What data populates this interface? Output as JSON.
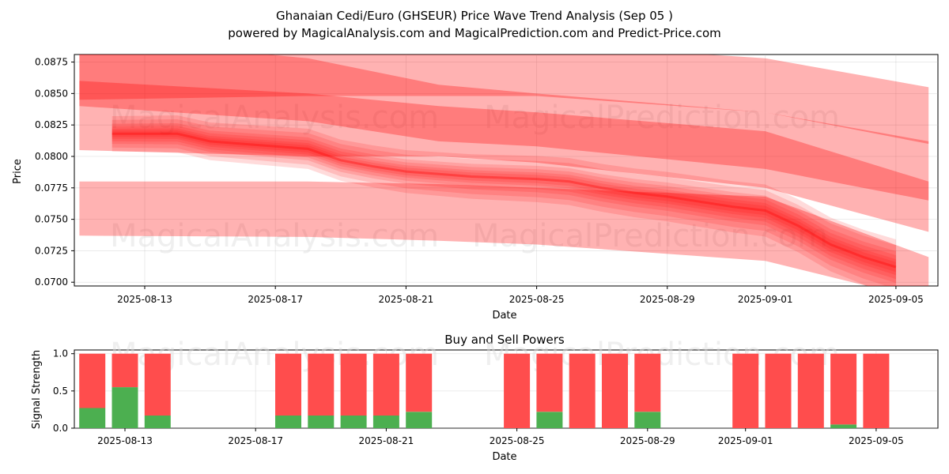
{
  "title_line1": "Ghanaian Cedi/Euro (GHSEUR) Price Wave Trend Analysis (Sep 05 )",
  "title_line2": "powered by MagicalAnalysis.com and MagicalPrediction.com and Predict-Price.com",
  "watermarks": [
    "MagicalAnalysis.com",
    "MagicalPrediction.com"
  ],
  "colors": {
    "band": "#ff0000",
    "buy": "#4caf50",
    "sell": "#ff4d4d"
  },
  "chart_data": [
    {
      "type": "area",
      "xlabel": "Date",
      "ylabel": "Price",
      "ylim": [
        0.0697,
        0.0881
      ],
      "x_ticks": [
        "2025-08-13",
        "2025-08-17",
        "2025-08-21",
        "2025-08-25",
        "2025-08-29",
        "2025-09-01",
        "2025-09-05"
      ],
      "y_ticks": [
        "0.0875",
        "0.0850",
        "0.0825",
        "0.0800",
        "0.0775",
        "0.0750",
        "0.0725",
        "0.0700"
      ],
      "grid": true,
      "bands": [
        {
          "x": [
            "2025-08-11",
            "2025-08-18",
            "2025-08-22",
            "2025-08-25",
            "2025-09-01",
            "2025-09-06"
          ],
          "upper": [
            0.0895,
            0.0878,
            0.0857,
            0.085,
            0.0835,
            0.0812
          ],
          "lower": [
            0.084,
            0.0828,
            0.0812,
            0.0808,
            0.079,
            0.0765
          ]
        },
        {
          "x": [
            "2025-08-11",
            "2025-08-18",
            "2025-08-22",
            "2025-08-25",
            "2025-09-01",
            "2025-09-06"
          ],
          "upper": [
            0.0905,
            0.0895,
            0.089,
            0.089,
            0.0878,
            0.0855
          ],
          "lower": [
            0.0845,
            0.0848,
            0.0848,
            0.0848,
            0.0835,
            0.081
          ]
        },
        {
          "x": [
            "2025-08-11",
            "2025-08-18",
            "2025-08-22",
            "2025-08-25",
            "2025-09-01",
            "2025-09-06"
          ],
          "upper": [
            0.086,
            0.085,
            0.084,
            0.0835,
            0.082,
            0.078
          ],
          "lower": [
            0.0805,
            0.08,
            0.08,
            0.0795,
            0.0775,
            0.074
          ]
        },
        {
          "x": [
            "2025-08-11",
            "2025-08-18",
            "2025-08-22",
            "2025-08-25",
            "2025-09-01",
            "2025-09-06"
          ],
          "upper": [
            0.078,
            0.078,
            0.0778,
            0.0775,
            0.0768,
            0.072
          ],
          "lower": [
            0.0737,
            0.0736,
            0.0733,
            0.073,
            0.0717,
            0.0685
          ]
        }
      ],
      "trend": {
        "x": [
          "2025-08-12",
          "2025-08-13",
          "2025-08-14",
          "2025-08-15",
          "2025-08-16",
          "2025-08-17",
          "2025-08-18",
          "2025-08-19",
          "2025-08-20",
          "2025-08-21",
          "2025-08-22",
          "2025-08-23",
          "2025-08-24",
          "2025-08-25",
          "2025-08-26",
          "2025-08-27",
          "2025-08-28",
          "2025-08-29",
          "2025-08-30",
          "2025-08-31",
          "2025-09-01",
          "2025-09-02",
          "2025-09-03",
          "2025-09-04",
          "2025-09-05"
        ],
        "y": [
          0.0818,
          0.0818,
          0.0818,
          0.0812,
          0.081,
          0.0808,
          0.0806,
          0.0797,
          0.0792,
          0.0788,
          0.0786,
          0.0784,
          0.0783,
          0.0782,
          0.078,
          0.0775,
          0.0771,
          0.0768,
          0.0764,
          0.076,
          0.0757,
          0.0745,
          0.073,
          0.072,
          0.0712
        ]
      }
    },
    {
      "type": "bar",
      "title": "Buy and Sell Powers",
      "xlabel": "Date",
      "ylabel": "Signal Strength",
      "ylim": [
        0,
        1.05
      ],
      "x_ticks": [
        "2025-08-13",
        "2025-08-17",
        "2025-08-21",
        "2025-08-25",
        "2025-08-29",
        "2025-09-01",
        "2025-09-05"
      ],
      "y_ticks": [
        "1.0",
        "0.5",
        "0.0"
      ],
      "grid": true,
      "categories": [
        "2025-08-12",
        "2025-08-13",
        "2025-08-14",
        "2025-08-18",
        "2025-08-19",
        "2025-08-20",
        "2025-08-21",
        "2025-08-22",
        "2025-08-25",
        "2025-08-26",
        "2025-08-27",
        "2025-08-28",
        "2025-08-29",
        "2025-09-01",
        "2025-09-02",
        "2025-09-03",
        "2025-09-04",
        "2025-09-05"
      ],
      "series": [
        {
          "values": [
            0.27,
            0.55,
            0.17,
            0.17,
            0.17,
            0.17,
            0.17,
            0.22,
            0.0,
            0.22,
            0.0,
            0.0,
            0.22,
            0.0,
            0.0,
            0.0,
            0.05,
            0.0
          ]
        },
        {
          "values": [
            0.73,
            0.45,
            0.83,
            0.83,
            0.83,
            0.83,
            0.83,
            0.78,
            1.0,
            0.78,
            1.0,
            1.0,
            0.78,
            1.0,
            1.0,
            1.0,
            0.95,
            1.0
          ]
        }
      ]
    }
  ]
}
